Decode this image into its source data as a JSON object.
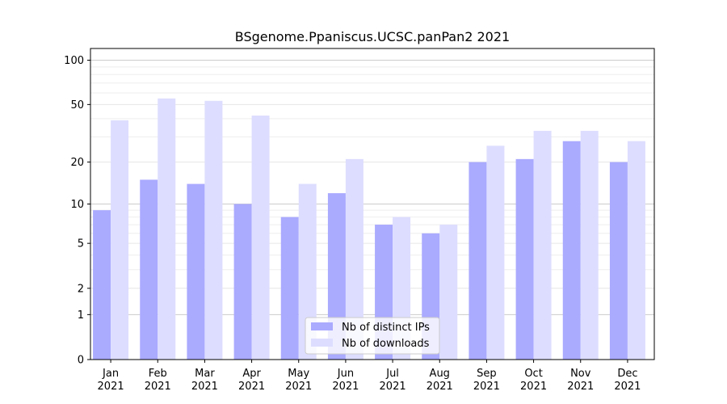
{
  "chart_data": {
    "type": "bar",
    "title": "BSgenome.Ppaniscus.UCSC.panPan2 2021",
    "xlabel": "",
    "ylabel": "",
    "yscale": "log(1+y)",
    "ylim": [
      0,
      120
    ],
    "yticks": [
      0,
      1,
      2,
      5,
      10,
      20,
      50,
      100
    ],
    "grid": true,
    "legend_position": "bottom-center",
    "categories": [
      "Jan\n2021",
      "Feb\n2021",
      "Mar\n2021",
      "Apr\n2021",
      "May\n2021",
      "Jun\n2021",
      "Jul\n2021",
      "Aug\n2021",
      "Sep\n2021",
      "Oct\n2021",
      "Nov\n2021",
      "Dec\n2021"
    ],
    "series": [
      {
        "name": "Nb of distinct IPs",
        "color": "#aaaaff",
        "values": [
          9,
          15,
          14,
          10,
          8,
          12,
          7,
          6,
          20,
          21,
          28,
          20
        ]
      },
      {
        "name": "Nb of downloads",
        "color": "#ddddff",
        "values": [
          39,
          55,
          53,
          42,
          14,
          21,
          8,
          7,
          26,
          33,
          33,
          28
        ]
      }
    ]
  }
}
